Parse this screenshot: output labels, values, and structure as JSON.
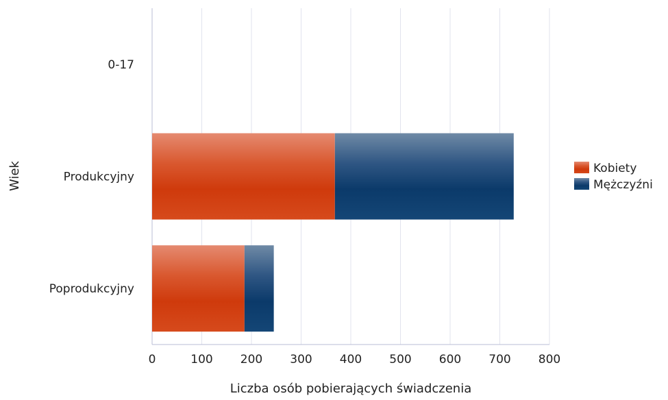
{
  "chart_data": {
    "type": "bar",
    "orientation": "horizontal",
    "stacked": true,
    "categories": [
      "0-17",
      "Produkcyjny",
      "Poprodukcyjny"
    ],
    "series": [
      {
        "name": "Kobiety",
        "values": [
          0,
          368,
          186
        ],
        "color": "#d13a10"
      },
      {
        "name": "Mężczyźni",
        "values": [
          0,
          360,
          59
        ],
        "color": "#0f3f70"
      }
    ],
    "xlabel": "Liczba osób pobierających świadczenia",
    "ylabel": "Wiek",
    "xlim": [
      0,
      800
    ],
    "xticks": [
      0,
      100,
      200,
      300,
      400,
      500,
      600,
      700,
      800
    ],
    "grid": "vertical",
    "legend_position": "right"
  }
}
